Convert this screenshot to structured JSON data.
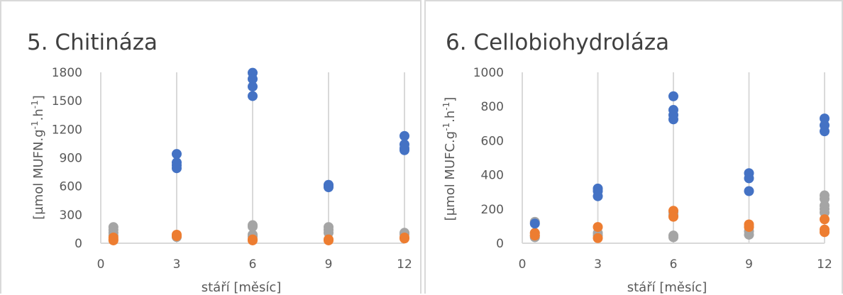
{
  "colors": {
    "blue": "#4472c4",
    "orange": "#ed7d31",
    "gray": "#a5a5a5",
    "grid": "#d9d9d9"
  },
  "chart_data": [
    {
      "type": "scatter",
      "title": "5.   Chitináza",
      "xlabel": "stáří [měsíc]",
      "ylabel": "[µmol MUFN.g-1.h-1]",
      "ylabel_parts": {
        "a": "[µmol MUFN.g",
        "sup1": "-1",
        "b": ".h",
        "sup2": "-1",
        "c": "]"
      },
      "xlim": [
        0,
        12
      ],
      "ylim": [
        0,
        1800
      ],
      "xticks": [
        0,
        3,
        6,
        9,
        12
      ],
      "yticks": [
        0,
        300,
        600,
        900,
        1200,
        1500,
        1800
      ],
      "grid": "vertical",
      "series": [
        {
          "color": "blue",
          "points": [
            [
              3,
              940
            ],
            [
              3,
              850
            ],
            [
              3,
              820
            ],
            [
              3,
              790
            ],
            [
              6,
              1795
            ],
            [
              6,
              1730
            ],
            [
              6,
              1650
            ],
            [
              6,
              1550
            ],
            [
              9,
              615
            ],
            [
              9,
              600
            ],
            [
              9,
              590
            ],
            [
              12,
              1130
            ],
            [
              12,
              1040
            ],
            [
              12,
              1000
            ],
            [
              12,
              980
            ]
          ]
        },
        {
          "color": "orange",
          "points": [
            [
              0.5,
              60
            ],
            [
              0.5,
              40
            ],
            [
              0.5,
              30
            ],
            [
              3,
              90
            ],
            [
              3,
              75
            ],
            [
              6,
              40
            ],
            [
              6,
              30
            ],
            [
              9,
              40
            ],
            [
              9,
              30
            ],
            [
              12,
              60
            ],
            [
              12,
              50
            ]
          ]
        },
        {
          "color": "gray",
          "points": [
            [
              0.5,
              170
            ],
            [
              0.5,
              140
            ],
            [
              0.5,
              110
            ],
            [
              0.5,
              80
            ],
            [
              3,
              70
            ],
            [
              3,
              65
            ],
            [
              6,
              190
            ],
            [
              6,
              175
            ],
            [
              6,
              90
            ],
            [
              6,
              70
            ],
            [
              9,
              170
            ],
            [
              9,
              140
            ],
            [
              9,
              110
            ],
            [
              12,
              110
            ],
            [
              12,
              95
            ]
          ]
        }
      ]
    },
    {
      "type": "scatter",
      "title": "6.   Cellobiohydroláza",
      "xlabel": "stáří [měsíc]",
      "ylabel": "[µmol MUFC.g-1.h-1]",
      "ylabel_parts": {
        "a": "[µmol MUFC.g",
        "sup1": "-1",
        "b": ".h",
        "sup2": "-1",
        "c": "]"
      },
      "xlim": [
        0,
        12
      ],
      "ylim": [
        0,
        1000
      ],
      "xticks": [
        0,
        3,
        6,
        9,
        12
      ],
      "yticks": [
        0,
        200,
        400,
        600,
        800,
        1000
      ],
      "grid": "vertical",
      "series": [
        {
          "color": "blue",
          "points": [
            [
              0.5,
              115
            ],
            [
              3,
              320
            ],
            [
              3,
              305
            ],
            [
              3,
              275
            ],
            [
              6,
              860
            ],
            [
              6,
              780
            ],
            [
              6,
              750
            ],
            [
              6,
              725
            ],
            [
              9,
              410
            ],
            [
              9,
              380
            ],
            [
              9,
              305
            ],
            [
              12,
              730
            ],
            [
              12,
              690
            ],
            [
              12,
              655
            ]
          ]
        },
        {
          "color": "orange",
          "points": [
            [
              0.5,
              60
            ],
            [
              0.5,
              45
            ],
            [
              3,
              95
            ],
            [
              3,
              30
            ],
            [
              6,
              190
            ],
            [
              6,
              155
            ],
            [
              9,
              110
            ],
            [
              9,
              95
            ],
            [
              12,
              140
            ],
            [
              12,
              80
            ],
            [
              12,
              65
            ]
          ]
        },
        {
          "color": "gray",
          "points": [
            [
              0.5,
              125
            ],
            [
              0.5,
              60
            ],
            [
              0.5,
              45
            ],
            [
              0.5,
              35
            ],
            [
              3,
              60
            ],
            [
              3,
              45
            ],
            [
              6,
              180
            ],
            [
              6,
              165
            ],
            [
              6,
              45
            ],
            [
              6,
              35
            ],
            [
              9,
              95
            ],
            [
              9,
              70
            ],
            [
              9,
              50
            ],
            [
              12,
              280
            ],
            [
              12,
              260
            ],
            [
              12,
              220
            ],
            [
              12,
              200
            ],
            [
              12,
              180
            ]
          ]
        }
      ]
    }
  ]
}
